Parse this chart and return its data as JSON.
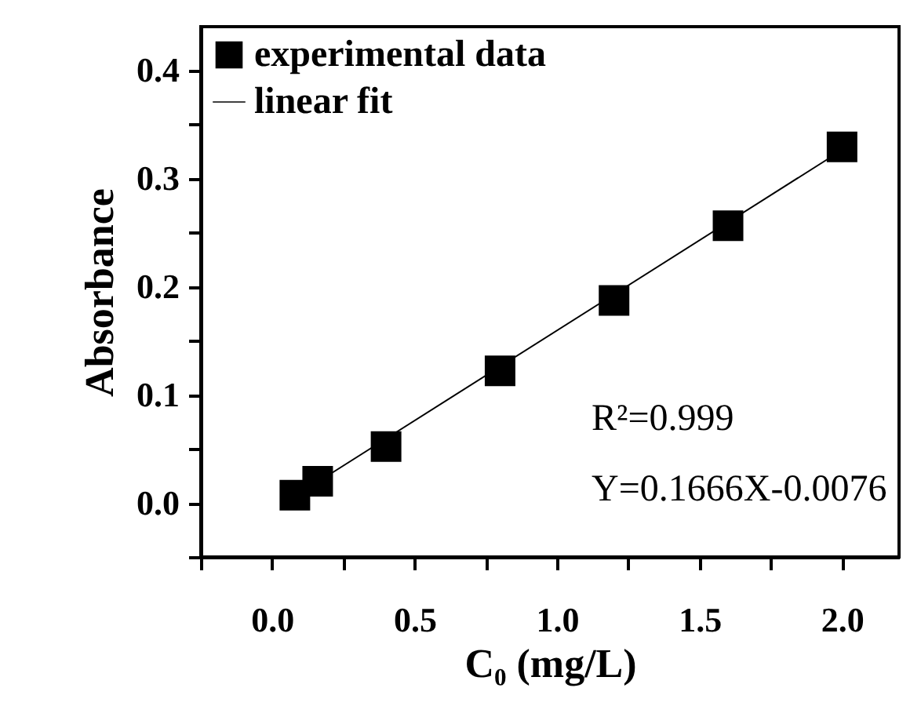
{
  "chart_data": {
    "type": "scatter",
    "xlabel": "C₀ (mg/L)",
    "ylabel": "Absorbance",
    "xlim": [
      -0.25,
      2.2
    ],
    "ylim": [
      -0.05,
      0.44
    ],
    "xticks": [
      {
        "value": -0.25,
        "label": null
      },
      {
        "value": 0,
        "label": "0.0"
      },
      {
        "value": 0.25,
        "label": null
      },
      0.5,
      {
        "value": 0.75,
        "label": null
      },
      {
        "value": 1,
        "label": "1.0"
      },
      {
        "value": 1.25,
        "label": null
      },
      1.5,
      {
        "value": 1.75,
        "label": null
      },
      {
        "value": 2,
        "label": "2.0"
      }
    ],
    "yticks": [
      {
        "value": -0.05,
        "label": null
      },
      {
        "value": 0,
        "label": "0.0"
      },
      {
        "value": 0.05,
        "label": null
      },
      0.1,
      {
        "value": 0.15,
        "label": null
      },
      0.2,
      {
        "value": 0.25,
        "label": null
      },
      0.3,
      {
        "value": 0.35,
        "label": null
      },
      0.4
    ],
    "legend": "top left",
    "grid": false,
    "series": [
      {
        "name": "experimental data",
        "marker": "square",
        "color": "#000000",
        "x": [
          0.08,
          0.16,
          0.4,
          0.8,
          1.2,
          1.6,
          2.0
        ],
        "values": [
          0.007,
          0.02,
          0.052,
          0.122,
          0.187,
          0.256,
          0.329
        ]
      },
      {
        "name": "linear fit",
        "type": "line",
        "color": "#000000",
        "marker": "none",
        "line_style": "solid",
        "x": [
          0.08,
          2.0
        ],
        "values": [
          0.006,
          0.326
        ]
      }
    ],
    "annotations": [
      "R²=0.999",
      "Y=0.1666X-0.0076"
    ]
  }
}
